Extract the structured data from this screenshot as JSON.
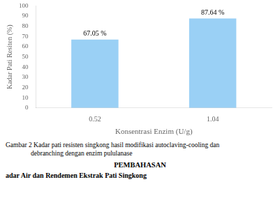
{
  "chart_data": {
    "type": "bar",
    "categories": [
      "0.52",
      "1.04"
    ],
    "values": [
      67.05,
      87.64
    ],
    "value_labels": [
      "67.05 %",
      "87.64 %"
    ],
    "data_labels": true,
    "xlabel": "Konsentrasi Enzim (U/g)",
    "ylabel": "Kadar Pati Resiten (%)",
    "ylim": [
      0,
      100
    ],
    "yticks": [
      0,
      10,
      20,
      30,
      40,
      50,
      60,
      70,
      80,
      90,
      100
    ],
    "grid": false,
    "annotations": [
      "Gambar 2  Kadar pati resisten singkong hasil modifikasi autoclaving-cooling dan",
      "debranching dengan enzim pululanase",
      "PEMBAHASAN",
      "adar Air dan Rendemen Ekstrak Pati Singkong"
    ]
  }
}
